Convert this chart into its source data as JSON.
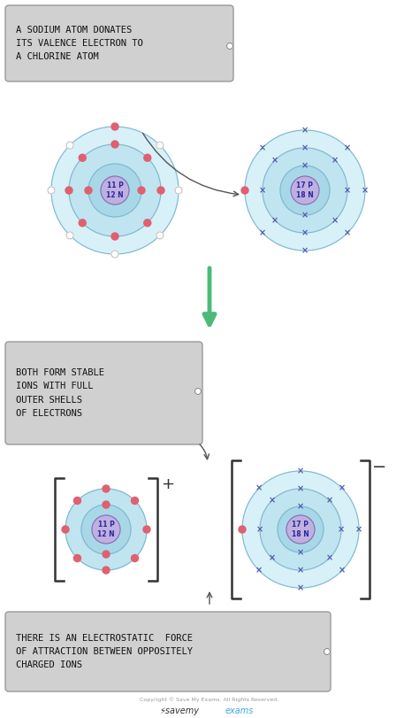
{
  "bg_color": "#ffffff",
  "nucleus_color_na": "#c0b0e0",
  "nucleus_color_cl": "#c0b0e0",
  "shell1_color": "#a8d8e8",
  "shell2_color": "#c0e4f0",
  "shell3_color": "#d8f0f8",
  "shell_border_color": "#80b8cc",
  "dot_color": "#e06070",
  "cross_color": "#5058b0",
  "empty_color": "#ffffff",
  "empty_border": "#bbbbbb",
  "text_box_bg": "#d0d0d0",
  "text_box_border": "#999999",
  "green_arrow": "#4cbb7a",
  "arrow_color": "#555555",
  "nucleus_text_color": "#2828a0",
  "box_text_color": "#111111",
  "label1": "A SODIUM ATOM DONATES\nITS VALENCE ELECTRON TO\nA CHLORINE ATOM",
  "label2": "BOTH FORM STABLE\nIONS WITH FULL\nOUTER SHELLS\nOF ELECTRONS",
  "label3": "THERE IS AN ELECTROSTATIC  FORCE\nOF ATTRACTION BETWEEN OPPOSITELY\nCHARGED IONS",
  "copyright": "Copyright © Save My Exams. All Rights Reserved."
}
